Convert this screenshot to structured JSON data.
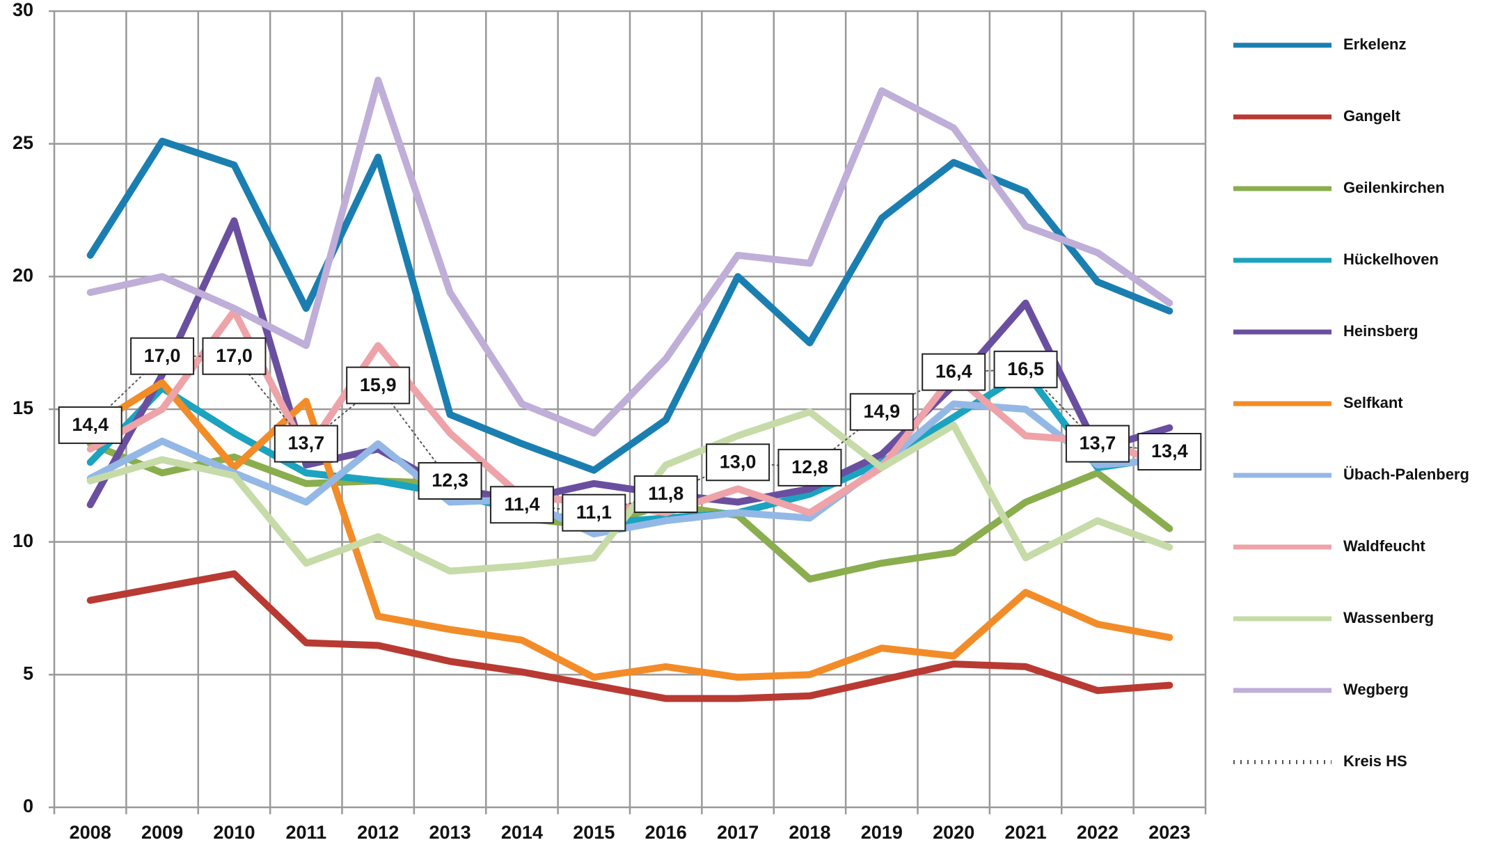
{
  "chart_data": {
    "type": "line",
    "categories": [
      "2008",
      "2009",
      "2010",
      "2011",
      "2012",
      "2013",
      "2014",
      "2015",
      "2016",
      "2017",
      "2018",
      "2019",
      "2020",
      "2021",
      "2022",
      "2023"
    ],
    "ylim": [
      0,
      30
    ],
    "yticks": [
      0,
      5,
      10,
      15,
      20,
      25,
      30
    ],
    "grid": true,
    "legend": "right",
    "series": [
      {
        "name": "Erkelenz",
        "color": "#1a7fb0",
        "values": [
          20.8,
          25.1,
          24.2,
          18.8,
          24.5,
          14.8,
          13.7,
          12.7,
          14.6,
          20.0,
          17.5,
          22.2,
          24.3,
          23.2,
          19.8,
          18.7
        ]
      },
      {
        "name": "Gangelt",
        "color": "#b83a32",
        "values": [
          7.8,
          8.3,
          8.8,
          6.2,
          6.1,
          5.5,
          5.1,
          4.6,
          4.1,
          4.1,
          4.2,
          4.8,
          5.4,
          5.3,
          4.4,
          4.6
        ]
      },
      {
        "name": "Geilenkirchen",
        "color": "#8aad4e",
        "values": [
          13.7,
          12.6,
          13.2,
          12.2,
          12.3,
          12.2,
          10.9,
          10.6,
          11.4,
          11.0,
          8.6,
          9.2,
          9.6,
          11.5,
          12.6,
          10.5
        ]
      },
      {
        "name": "Hückelhoven",
        "color": "#1ba3c0",
        "values": [
          13.0,
          15.8,
          14.1,
          12.6,
          12.3,
          11.8,
          11.2,
          10.7,
          10.9,
          11.1,
          11.8,
          13.0,
          14.7,
          16.4,
          12.8,
          13.2
        ]
      },
      {
        "name": "Heinsberg",
        "color": "#6a4fa0",
        "values": [
          11.4,
          16.3,
          22.1,
          12.9,
          13.5,
          12.0,
          11.6,
          12.2,
          11.8,
          11.5,
          12.0,
          13.3,
          15.9,
          19.0,
          13.5,
          14.3
        ]
      },
      {
        "name": "Selfkant",
        "color": "#f28c28",
        "values": [
          14.3,
          16.0,
          12.8,
          15.3,
          7.2,
          6.7,
          6.3,
          4.9,
          5.3,
          4.9,
          5.0,
          6.0,
          5.7,
          8.1,
          6.9,
          6.4
        ]
      },
      {
        "name": "Übach-Palenberg",
        "color": "#94b8e6",
        "values": [
          12.4,
          13.8,
          12.6,
          11.5,
          13.7,
          11.5,
          11.6,
          10.3,
          10.8,
          11.1,
          10.9,
          12.9,
          15.2,
          15.0,
          12.9,
          13.1
        ]
      },
      {
        "name": "Waldfeucht",
        "color": "#eea3a8",
        "values": [
          13.5,
          15.0,
          18.7,
          13.4,
          17.4,
          14.1,
          11.7,
          11.5,
          11.1,
          12.0,
          11.1,
          12.8,
          16.3,
          14.0,
          13.8,
          12.9
        ]
      },
      {
        "name": "Wassenberg",
        "color": "#c6dba8",
        "values": [
          12.3,
          13.1,
          12.5,
          9.2,
          10.2,
          8.9,
          9.1,
          9.4,
          12.9,
          14.0,
          14.9,
          12.8,
          14.4,
          9.4,
          10.8,
          9.8
        ]
      },
      {
        "name": "Wegberg",
        "color": "#bfaed8",
        "values": [
          19.4,
          20.0,
          18.8,
          17.4,
          27.4,
          19.4,
          15.2,
          14.1,
          16.9,
          20.8,
          20.5,
          27.0,
          25.6,
          21.9,
          20.9,
          19.0
        ]
      },
      {
        "name": "Kreis HS",
        "color": "#555555",
        "dashed": true,
        "values": [
          14.4,
          17.0,
          17.0,
          13.7,
          15.9,
          12.3,
          11.4,
          11.1,
          11.8,
          13.0,
          12.8,
          14.9,
          16.4,
          16.5,
          13.7,
          13.4
        ],
        "value_labels": [
          "14,4",
          "17,0",
          "17,0",
          "13,7",
          "15,9",
          "12,3",
          "11,4",
          "11,1",
          "11,8",
          "13,0",
          "12,8",
          "14,9",
          "16,4",
          "16,5",
          "13,7",
          "13,4"
        ]
      }
    ]
  }
}
